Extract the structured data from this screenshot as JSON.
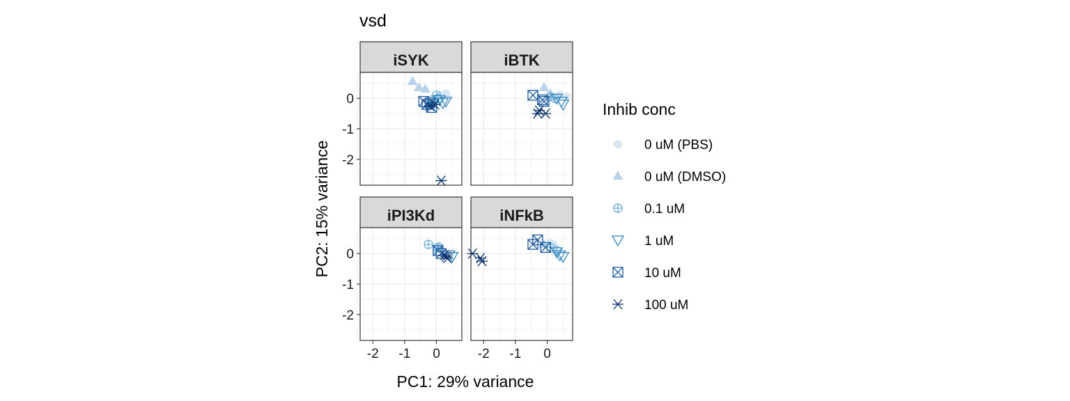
{
  "chart_data": {
    "type": "scatter",
    "title": "vsd",
    "xlabel": "PC1: 29% variance",
    "ylabel": "PC2: 15% variance",
    "xlim": [
      -2.4,
      0.8
    ],
    "ylim": [
      -2.85,
      0.85
    ],
    "x_ticks": [
      -2,
      -1,
      0
    ],
    "y_ticks": [
      0,
      -1,
      -2
    ],
    "grid": true,
    "facet_layout": "2x2",
    "legend_position": "right",
    "legend": {
      "title": "Inhib conc",
      "entries": [
        {
          "label": "0 uM (PBS)",
          "shape": "circle",
          "color": "#d6e6f4"
        },
        {
          "label": "0 uM (DMSO)",
          "shape": "triangle",
          "color": "#b9d4ea"
        },
        {
          "label": "0.1 uM",
          "shape": "circle-plus",
          "color": "#6aaed6"
        },
        {
          "label": "1 uM",
          "shape": "triangle-down",
          "color": "#3787c0"
        },
        {
          "label": "10 uM",
          "shape": "square-x",
          "color": "#1c5a9e"
        },
        {
          "label": "100 uM",
          "shape": "asterisk",
          "color": "#08306b"
        }
      ]
    },
    "panels": [
      {
        "name": "iSYK",
        "points": [
          {
            "c": 0,
            "x": 0.3,
            "y": 0.15
          },
          {
            "c": 0,
            "x": 0.1,
            "y": 0.1
          },
          {
            "c": 1,
            "x": -0.75,
            "y": 0.55
          },
          {
            "c": 1,
            "x": -0.55,
            "y": 0.35
          },
          {
            "c": 1,
            "x": -0.35,
            "y": 0.3
          },
          {
            "c": 2,
            "x": 0.0,
            "y": 0.1
          },
          {
            "c": 2,
            "x": 0.05,
            "y": 0.0
          },
          {
            "c": 2,
            "x": -0.1,
            "y": -0.05
          },
          {
            "c": 3,
            "x": 0.3,
            "y": -0.1
          },
          {
            "c": 3,
            "x": 0.2,
            "y": -0.15
          },
          {
            "c": 3,
            "x": 0.1,
            "y": -0.05
          },
          {
            "c": 4,
            "x": -0.4,
            "y": -0.1
          },
          {
            "c": 4,
            "x": -0.2,
            "y": -0.15
          },
          {
            "c": 4,
            "x": -0.15,
            "y": -0.3
          },
          {
            "c": 4,
            "x": -0.3,
            "y": -0.2
          },
          {
            "c": 5,
            "x": -0.2,
            "y": -0.25
          },
          {
            "c": 5,
            "x": -0.05,
            "y": -0.2
          },
          {
            "c": 5,
            "x": 0.15,
            "y": -2.7
          }
        ]
      },
      {
        "name": "iBTK",
        "points": [
          {
            "c": 0,
            "x": 0.6,
            "y": 0.05
          },
          {
            "c": 0,
            "x": 0.4,
            "y": 0.1
          },
          {
            "c": 1,
            "x": -0.1,
            "y": 0.35
          },
          {
            "c": 1,
            "x": 0.1,
            "y": 0.15
          },
          {
            "c": 2,
            "x": 0.1,
            "y": 0.05
          },
          {
            "c": 2,
            "x": 0.25,
            "y": 0.0
          },
          {
            "c": 3,
            "x": 0.3,
            "y": 0.0
          },
          {
            "c": 3,
            "x": 0.45,
            "y": -0.1
          },
          {
            "c": 3,
            "x": 0.5,
            "y": -0.2
          },
          {
            "c": 4,
            "x": -0.45,
            "y": 0.1
          },
          {
            "c": 4,
            "x": -0.15,
            "y": -0.05
          },
          {
            "c": 4,
            "x": -0.1,
            "y": -0.1
          },
          {
            "c": 5,
            "x": -0.25,
            "y": -0.4
          },
          {
            "c": 5,
            "x": -0.05,
            "y": -0.5
          },
          {
            "c": 5,
            "x": -0.3,
            "y": -0.5
          }
        ]
      },
      {
        "name": "iPI3Kd",
        "points": [
          {
            "c": 0,
            "x": 0.1,
            "y": 0.25
          },
          {
            "c": 1,
            "x": 0.05,
            "y": 0.15
          },
          {
            "c": 2,
            "x": -0.25,
            "y": 0.3
          },
          {
            "c": 2,
            "x": 0.05,
            "y": 0.2
          },
          {
            "c": 3,
            "x": 0.4,
            "y": -0.05
          },
          {
            "c": 3,
            "x": 0.5,
            "y": -0.1
          },
          {
            "c": 4,
            "x": 0.05,
            "y": 0.1
          },
          {
            "c": 4,
            "x": 0.15,
            "y": 0.0
          },
          {
            "c": 5,
            "x": 0.25,
            "y": -0.05
          },
          {
            "c": 5,
            "x": 0.3,
            "y": -0.1
          },
          {
            "c": 5,
            "x": 0.35,
            "y": -0.15
          }
        ]
      },
      {
        "name": "iNFkB",
        "points": [
          {
            "c": 0,
            "x": 0.1,
            "y": 0.35
          },
          {
            "c": 0,
            "x": 0.2,
            "y": 0.3
          },
          {
            "c": 1,
            "x": -0.1,
            "y": 0.3
          },
          {
            "c": 2,
            "x": 0.1,
            "y": 0.2
          },
          {
            "c": 2,
            "x": 0.3,
            "y": 0.1
          },
          {
            "c": 3,
            "x": 0.3,
            "y": 0.05
          },
          {
            "c": 3,
            "x": 0.4,
            "y": -0.05
          },
          {
            "c": 3,
            "x": 0.5,
            "y": -0.1
          },
          {
            "c": 4,
            "x": -0.3,
            "y": 0.45
          },
          {
            "c": 4,
            "x": -0.45,
            "y": 0.3
          },
          {
            "c": 4,
            "x": -0.05,
            "y": 0.2
          },
          {
            "c": 5,
            "x": -2.35,
            "y": 0.0
          },
          {
            "c": 5,
            "x": -2.1,
            "y": -0.15
          },
          {
            "c": 5,
            "x": -2.05,
            "y": -0.25
          }
        ]
      }
    ]
  }
}
